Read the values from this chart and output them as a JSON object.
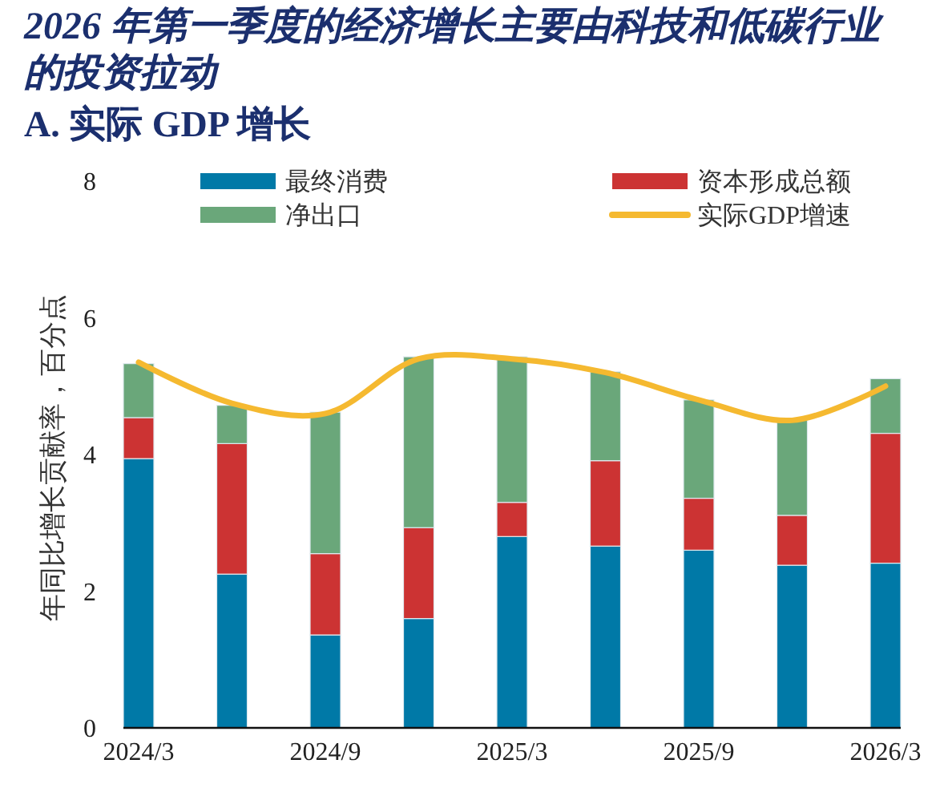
{
  "chart_data": {
    "type": "bar",
    "title": "2026 年第一季度的经济增长主要由科技和低碳行业的投资拉动",
    "subtitle": "A. 实际 GDP 增长",
    "ylabel": "年同比增长贡献率，百分点",
    "categories": [
      "2024/3",
      null,
      "2024/9",
      null,
      "2025/3",
      null,
      "2025/9",
      null,
      "2026/3"
    ],
    "stacked": true,
    "series": [
      {
        "name": "最终消费",
        "color": "#0079a7",
        "values": [
          3.94,
          2.25,
          1.36,
          1.6,
          2.8,
          2.66,
          2.6,
          2.38,
          2.41
        ]
      },
      {
        "name": "资本形成总额",
        "color": "#cc3333",
        "values": [
          0.6,
          1.91,
          1.19,
          1.33,
          0.5,
          1.25,
          0.76,
          0.73,
          1.9
        ]
      },
      {
        "name": "净出口",
        "color": "#6aa77a",
        "values": [
          0.79,
          0.56,
          2.07,
          2.5,
          2.13,
          1.3,
          1.44,
          1.39,
          0.8
        ]
      },
      {
        "name": "实际GDP增速",
        "type": "line",
        "color": "#f5b930",
        "values": [
          5.35,
          4.75,
          4.6,
          5.4,
          5.4,
          5.2,
          4.8,
          4.5,
          5.0
        ]
      }
    ],
    "ylim": [
      0,
      8
    ],
    "yticks": [
      0,
      2,
      4,
      6,
      8
    ],
    "legend": "top"
  }
}
